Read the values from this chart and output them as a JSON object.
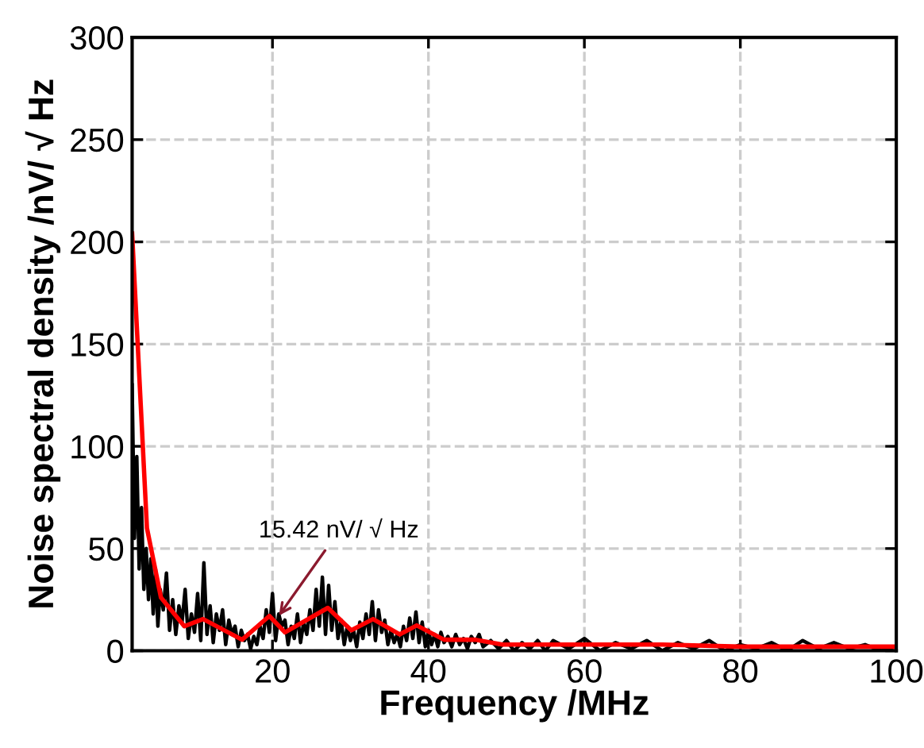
{
  "chart_data": {
    "type": "line",
    "xlabel": "Frequency /MHz",
    "ylabel": "Noise spectral density /nV/ √ Hz",
    "xlim": [
      2,
      100
    ],
    "ylim": [
      0,
      300
    ],
    "xticks": [
      20,
      40,
      60,
      80,
      100
    ],
    "yticks": [
      0,
      50,
      100,
      150,
      200,
      250,
      300
    ],
    "grid": true,
    "legend": false,
    "series": [
      {
        "color": "#000000",
        "x": [
          2,
          2.3,
          2.6,
          2.9,
          3.2,
          3.5,
          3.8,
          4.1,
          4.4,
          4.7,
          5,
          5.3,
          5.6,
          6,
          6.4,
          6.8,
          7.2,
          7.6,
          8,
          8.4,
          8.8,
          9.2,
          9.6,
          10,
          10.4,
          10.8,
          11.2,
          11.6,
          12,
          12.4,
          12.8,
          13.2,
          13.6,
          14,
          14.4,
          14.8,
          15.2,
          15.6,
          16,
          16.4,
          16.8,
          17.2,
          17.6,
          18,
          18.4,
          18.8,
          19.2,
          19.6,
          20,
          20.4,
          20.8,
          21.2,
          21.6,
          22,
          22.4,
          22.8,
          23.2,
          23.6,
          24,
          24.4,
          24.8,
          25.2,
          25.6,
          26,
          26.4,
          26.8,
          27.2,
          27.6,
          28,
          28.4,
          28.8,
          29.2,
          29.6,
          30,
          30.4,
          30.8,
          31.2,
          31.6,
          32,
          32.4,
          32.8,
          33.2,
          33.6,
          34,
          34.4,
          34.8,
          35.2,
          35.6,
          36,
          36.4,
          36.8,
          37.2,
          37.6,
          38,
          38.4,
          38.8,
          39.2,
          39.6,
          40,
          40.4,
          40.8,
          41.2,
          41.6,
          42,
          42.5,
          43,
          43.5,
          44,
          44.5,
          45,
          45.5,
          46,
          46.5,
          47,
          48,
          49,
          50,
          51,
          52,
          53,
          54,
          55,
          56,
          58,
          60,
          62,
          64,
          66,
          68,
          70,
          72,
          74,
          76,
          78,
          80,
          82,
          84,
          86,
          88,
          90,
          92,
          94,
          96,
          98,
          100
        ],
        "values": [
          130,
          55,
          95,
          40,
          70,
          30,
          50,
          25,
          45,
          18,
          40,
          12,
          30,
          20,
          38,
          10,
          25,
          8,
          22,
          14,
          30,
          6,
          18,
          9,
          28,
          5,
          43,
          8,
          22,
          4,
          18,
          10,
          20,
          3,
          15,
          8,
          12,
          2,
          10,
          5,
          8,
          1,
          7,
          3,
          12,
          6,
          20,
          9,
          28,
          5,
          18,
          12,
          15,
          3,
          12,
          6,
          18,
          4,
          14,
          8,
          20,
          10,
          30,
          12,
          36,
          8,
          32,
          10,
          24,
          6,
          15,
          3,
          12,
          5,
          10,
          2,
          14,
          6,
          18,
          8,
          24,
          5,
          20,
          9,
          15,
          3,
          10,
          4,
          8,
          2,
          12,
          5,
          16,
          6,
          19,
          4,
          14,
          2,
          10,
          3,
          8,
          2,
          9,
          4,
          7,
          2,
          8,
          3,
          6,
          1,
          7,
          4,
          8,
          2,
          5,
          1,
          5,
          0,
          4,
          1,
          5,
          0,
          5,
          1,
          6,
          0,
          4,
          1,
          5,
          0,
          4,
          1,
          5,
          0,
          3,
          1,
          4,
          0,
          5,
          1,
          4,
          1,
          3,
          0,
          2
        ]
      },
      {
        "color": "#ff0000",
        "x": [
          2,
          3.9,
          5.7,
          8.7,
          11.1,
          16.1,
          19.6,
          21.6,
          27.1,
          30.1,
          32.9,
          36.3,
          38.5,
          42,
          46,
          49.5,
          60,
          70,
          80,
          90,
          100
        ],
        "values": [
          204,
          60,
          26,
          12,
          15.5,
          5.4,
          17,
          9,
          21,
          10,
          15.5,
          8,
          12.4,
          5.4,
          5.4,
          3,
          3,
          3,
          2,
          2,
          2
        ]
      }
    ],
    "annotations": [
      {
        "text": "15.42 nV/ √ Hz",
        "x": 20.5,
        "y": 15.42
      }
    ]
  }
}
